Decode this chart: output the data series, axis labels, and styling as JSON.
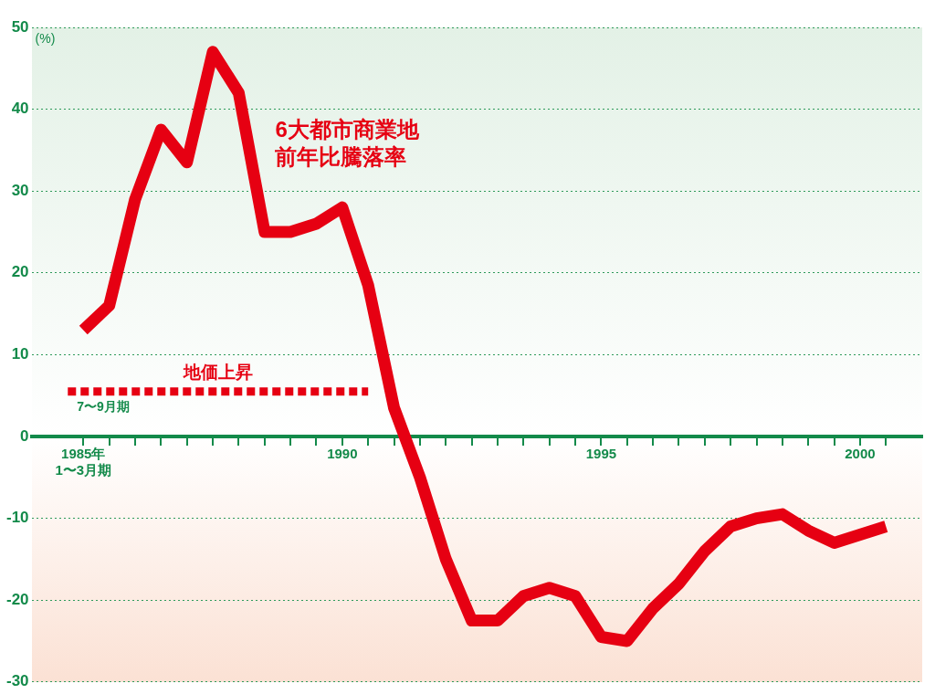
{
  "chart_data": {
    "type": "line",
    "ylabel": "(%)",
    "x": [
      1985,
      1985.5,
      1986,
      1986.5,
      1987,
      1987.5,
      1988,
      1988.5,
      1989,
      1989.5,
      1990,
      1990.5,
      1991,
      1991.5,
      1992,
      1992.5,
      1993,
      1993.5,
      1994,
      1994.5,
      1995,
      1995.5,
      1996,
      1996.5,
      1997,
      1997.5,
      1998,
      1998.5,
      1999,
      1999.5,
      2000,
      2000.5
    ],
    "series": [
      {
        "name": "6大都市商業地前年比騰落率",
        "color": "#e60012",
        "values": [
          13,
          16,
          29,
          37.5,
          33.5,
          47,
          42,
          25,
          25,
          26,
          28,
          18.5,
          3.5,
          -5,
          -15,
          -22.5,
          -22.5,
          -19.5,
          -18.5,
          -19.5,
          -24.5,
          -25,
          -21,
          -18,
          -14,
          -11,
          -10,
          -9.5,
          -11.5,
          -13,
          -12,
          -11
        ]
      },
      {
        "name": "地価上昇",
        "color": "#e60012",
        "x": [
          1984.7,
          1990.5
        ],
        "values": [
          5.5,
          5.5
        ],
        "line_style": "dashed"
      }
    ],
    "xlim": [
      1984,
      2001.2
    ],
    "ylim": [
      -30,
      50
    ],
    "xticks": [
      {
        "value": 1985,
        "label": "1985年\n1〜3月期"
      },
      {
        "value": 1985.5,
        "label": null
      },
      {
        "value": 1986,
        "label": null
      },
      {
        "value": 1986.5,
        "label": null
      },
      {
        "value": 1987,
        "label": null
      },
      {
        "value": 1987.5,
        "label": null
      },
      {
        "value": 1988,
        "label": null
      },
      {
        "value": 1988.5,
        "label": null
      },
      {
        "value": 1989,
        "label": null
      },
      {
        "value": 1989.5,
        "label": null
      },
      1990,
      {
        "value": 1990.5,
        "label": null
      },
      {
        "value": 1991,
        "label": null
      },
      {
        "value": 1991.5,
        "label": null
      },
      {
        "value": 1992,
        "label": null
      },
      {
        "value": 1992.5,
        "label": null
      },
      {
        "value": 1993,
        "label": null
      },
      {
        "value": 1993.5,
        "label": null
      },
      {
        "value": 1994,
        "label": null
      },
      {
        "value": 1994.5,
        "label": null
      },
      1995,
      {
        "value": 1995.5,
        "label": null
      },
      {
        "value": 1996,
        "label": null
      },
      {
        "value": 1996.5,
        "label": null
      },
      {
        "value": 1997,
        "label": null
      },
      {
        "value": 1997.5,
        "label": null
      },
      {
        "value": 1998,
        "label": null
      },
      {
        "value": 1998.5,
        "label": null
      },
      {
        "value": 1999,
        "label": null
      },
      {
        "value": 1999.5,
        "label": null
      },
      2000,
      {
        "value": 2000.5,
        "label": null
      }
    ],
    "yticks": [
      -30,
      -20,
      -10,
      0,
      10,
      20,
      30,
      40,
      50
    ],
    "grid": "y",
    "marker": "none",
    "line_style": "solid",
    "annotations": [
      "7〜9月期"
    ]
  }
}
